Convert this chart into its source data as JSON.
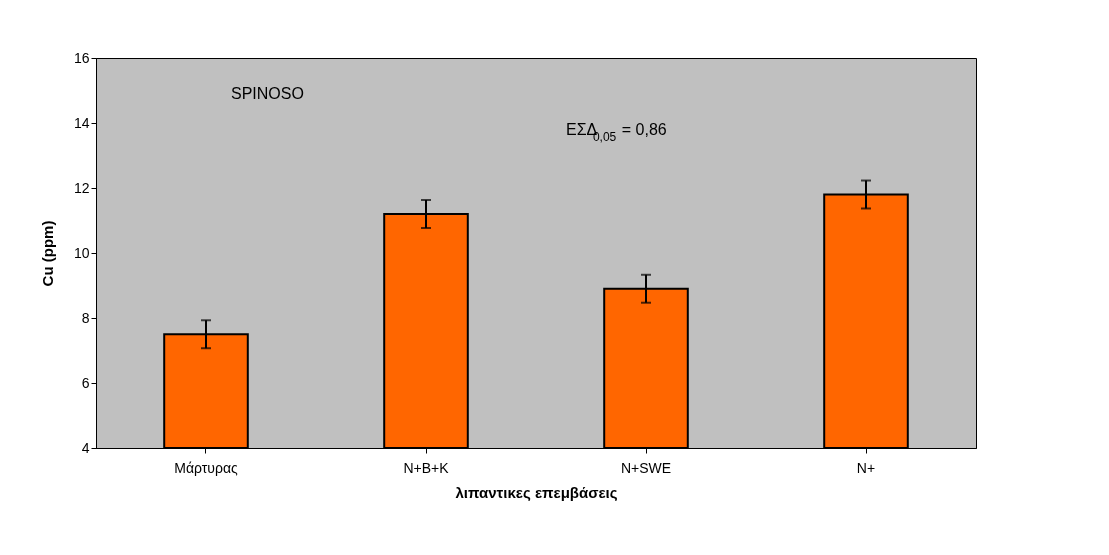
{
  "chart_data": {
    "type": "bar",
    "xlabel": "λιπαντικες επεμβάσεις",
    "ylabel": "Cu (ppm)",
    "categories": [
      "Μάρτυρας",
      "N+B+K",
      "N+SWE",
      "N+"
    ],
    "values": [
      7.5,
      11.2,
      8.9,
      11.8
    ],
    "errors": [
      0.43,
      0.43,
      0.43,
      0.43
    ],
    "color": "#ff6600",
    "ylim": [
      4,
      16
    ],
    "yticks": [
      4,
      6,
      8,
      10,
      12,
      14,
      16
    ],
    "grid": false,
    "annotations": [
      "SPINOSO",
      "ΕΣΔ$_{0,05}$ = 0,86"
    ]
  }
}
